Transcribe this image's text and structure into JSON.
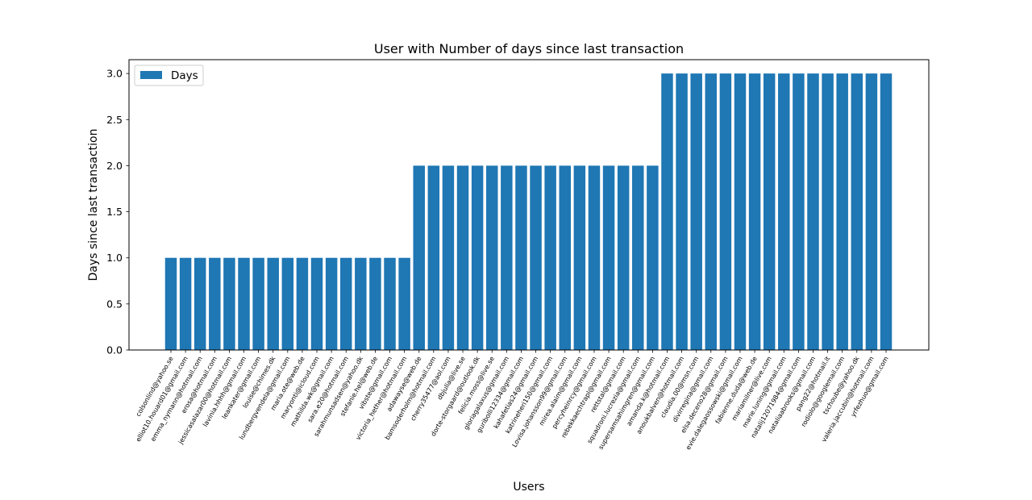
{
  "chart_data": {
    "type": "bar",
    "title": "User with Number of days since last transaction",
    "xlabel": "Users",
    "ylabel": "Days since last transaction",
    "ylim": [
      0,
      3.15
    ],
    "yticks": [
      "0.0",
      "0.5",
      "1.0",
      "1.5",
      "2.0",
      "2.5",
      "3.0"
    ],
    "grid": false,
    "legend_position": "top-left",
    "bar_color": "#1f77b4",
    "series": [
      {
        "name": "Days",
        "categories": [
          "colsonlind@yahoo.se",
          "elliot10.houard01@gmail.com",
          "emma_nymann@hotmail.com",
          "erosa@hotmail.com",
          "jessicasalazar00@hotmail.com",
          "lavinia.hhhh@gmail.com",
          "leankater@gmail.com",
          "louise@chimes.dk",
          "lundbergvendela@gmail.com",
          "maria.ote@web.de",
          "maryonti@icloud.com",
          "mathilda.wk@gmail.com",
          "sara.e20@hotmail.com",
          "sarahmunsadsen@yahoo.dk",
          "stefanie.hel@web.de",
          "vibste@gmail.com",
          "victoria_hether@hotmail.com",
          "adawayse@web.de",
          "bamsoderholm@hotmail.com",
          "cherry35477@aol.com",
          "dbjulia@live.se",
          "dorte-storgaard@outlook.dk",
          "felicia.moss@live.se",
          "gloriagalaxus@gmail.com",
          "guribolli12334@gmail.com",
          "kahafetias24@gmail.com",
          "katrineheri150@gmail.com",
          "Lovisa.johansson99@gmail.com",
          "mirea.alaim@gmail.com",
          "percyheinrcy@gmail.com",
          "rebekkaechtrapl@gmail.com",
          "rettstal@gmail.com",
          "squadroni.lucrezia@gmail.com",
          "supersamsahimgren@gmail.com",
          "amanda.k@hotmail.com",
          "anoukbalven@hotmail.com",
          "claudia.00@msn.com",
          "divirregina@gmail.com",
          "elsa.deceno28@gmail.com",
          "evie.dalegaossowski@gmail.com",
          "fabienne.duda@web.de",
          "mariamilner@live.com",
          "marie.luning@gmail.com",
          "natalij12071984@gmail.com",
          "nataliaabrooks@gmail.com",
          "pang22@hotmail.it",
          "rodiolo@googlemail.com",
          "tschoube@yahoo.dk",
          "valeria.jaccubin@hotmail.com",
          "yrfezhuo@gmail.com"
        ],
        "values": [
          1,
          1,
          1,
          1,
          1,
          1,
          1,
          1,
          1,
          1,
          1,
          1,
          1,
          1,
          1,
          1,
          1,
          2,
          2,
          2,
          2,
          2,
          2,
          2,
          2,
          2,
          2,
          2,
          2,
          2,
          2,
          2,
          2,
          2,
          3,
          3,
          3,
          3,
          3,
          3,
          3,
          3,
          3,
          3,
          3,
          3,
          3,
          3,
          3,
          3
        ]
      }
    ]
  }
}
